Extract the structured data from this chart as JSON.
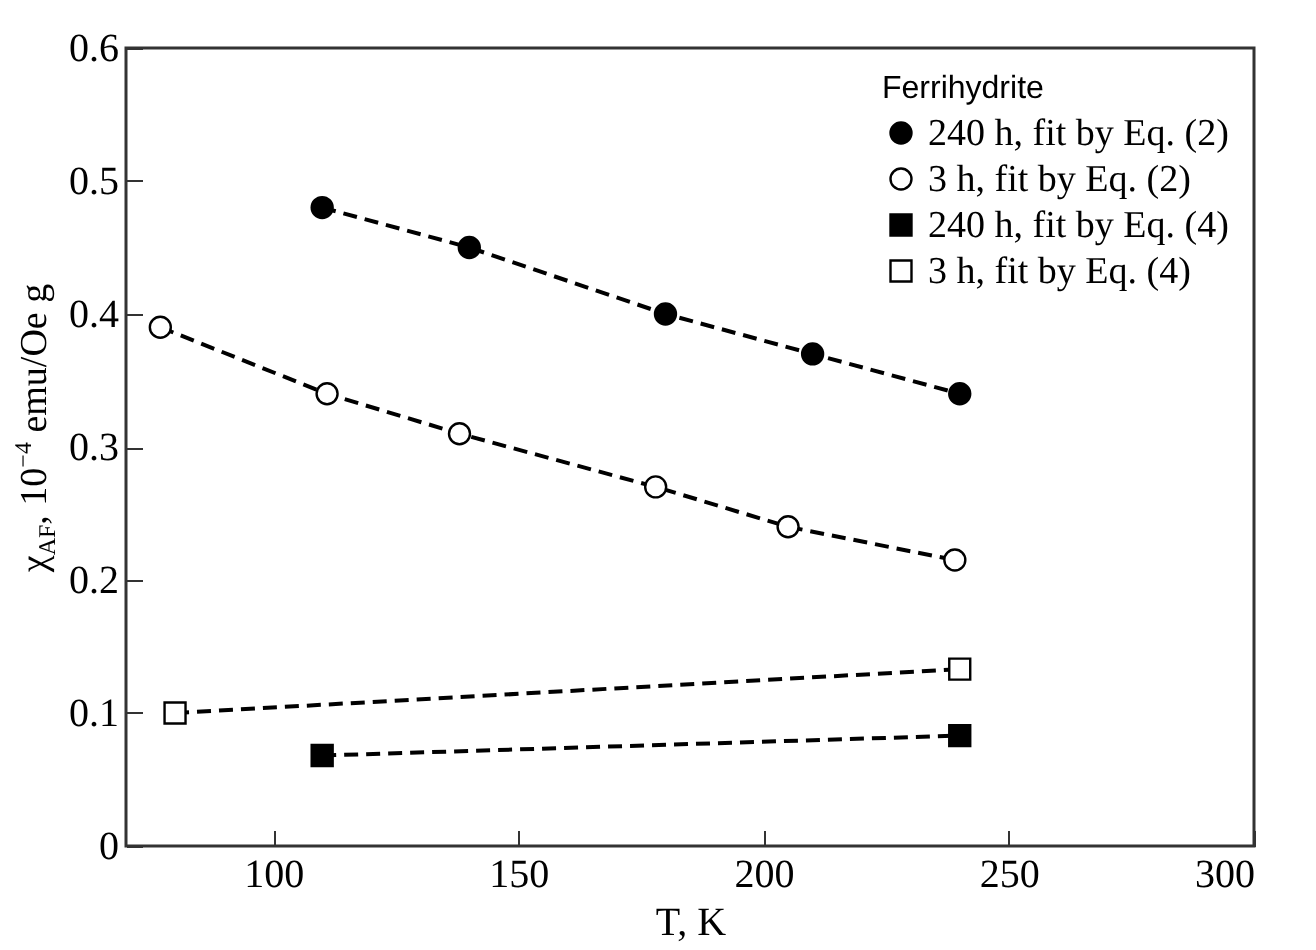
{
  "chart_data": {
    "type": "line",
    "xlabel": "T, K",
    "ylabel": "χ$_{AF}$, 10$^{−4}$ emu/Oe g",
    "legend_title": "Ferrihydrite",
    "xlim": [
      70,
      300
    ],
    "xticks": [
      100,
      150,
      200,
      250,
      300
    ],
    "ylim": [
      0,
      0.6
    ],
    "yticks": [
      0,
      0.1,
      0.2,
      0.3,
      0.4,
      0.5,
      0.6
    ],
    "grid": false,
    "legend": "top right",
    "line_style": "dashed",
    "series": [
      {
        "name": "240 h, fit by Eq. (2)",
        "color": "#000000",
        "marker": "circle",
        "x": [
          110,
          140,
          180,
          210,
          240
        ],
        "values": [
          0.48,
          0.45,
          0.4,
          0.37,
          0.34
        ]
      },
      {
        "name": "3 h,  fit by Eq. (2)",
        "color": "#ffffff",
        "marker": "circle",
        "x": [
          77,
          111,
          138,
          178,
          205,
          239
        ],
        "values": [
          0.39,
          0.34,
          0.31,
          0.27,
          0.24,
          0.215
        ]
      },
      {
        "name": "240 h, fit by Eq. (4)",
        "color": "#000000",
        "marker": "square",
        "x": [
          110,
          240
        ],
        "values": [
          0.068,
          0.083
        ]
      },
      {
        "name": "3 h, fit by Eq. (4)",
        "color": "#ffffff",
        "marker": "square",
        "x": [
          80,
          240
        ],
        "values": [
          0.1,
          0.133
        ]
      }
    ]
  }
}
